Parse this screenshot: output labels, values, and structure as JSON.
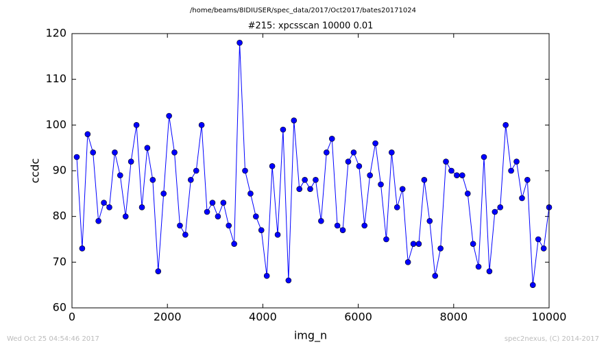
{
  "chart_data": {
    "type": "line",
    "suptitle": "/home/beams/8IDIUSER/spec_data/2017/Oct2017/bates20171024",
    "title": "#215: xpcsscan 10000 0.01",
    "xlabel": "img_n",
    "ylabel": "ccdc",
    "x": [
      100,
      214,
      328,
      441,
      555,
      669,
      783,
      897,
      1010,
      1124,
      1238,
      1352,
      1466,
      1579,
      1693,
      1807,
      1921,
      2035,
      2148,
      2262,
      2376,
      2490,
      2604,
      2717,
      2831,
      2945,
      3059,
      3173,
      3286,
      3400,
      3514,
      3628,
      3742,
      3855,
      3969,
      4083,
      4197,
      4311,
      4424,
      4538,
      4652,
      4766,
      4880,
      4993,
      5107,
      5221,
      5335,
      5449,
      5562,
      5676,
      5790,
      5904,
      6018,
      6131,
      6245,
      6359,
      6473,
      6587,
      6700,
      6814,
      6928,
      7042,
      7156,
      7269,
      7383,
      7497,
      7611,
      7725,
      7838,
      7952,
      8066,
      8180,
      8294,
      8407,
      8521,
      8635,
      8749,
      8863,
      8976,
      9090,
      9204,
      9318,
      9432,
      9545,
      9659,
      9773,
      9887,
      10000
    ],
    "series": [
      {
        "color": "#0000ff",
        "values": [
          93,
          73,
          98,
          94,
          79,
          83,
          82,
          94,
          89,
          80,
          92,
          100,
          82,
          95,
          88,
          68,
          85,
          102,
          94,
          78,
          76,
          88,
          90,
          100,
          81,
          83,
          80,
          83,
          78,
          74,
          118,
          90,
          85,
          80,
          77,
          67,
          91,
          76,
          99,
          66,
          101,
          86,
          88,
          86,
          88,
          79,
          94,
          97,
          78,
          77,
          92,
          94,
          91,
          78,
          89,
          96,
          87,
          75,
          94,
          82,
          86,
          70,
          74,
          74,
          88,
          79,
          67,
          73,
          92,
          90,
          89,
          89,
          85,
          74,
          69,
          93,
          68,
          81,
          82,
          100,
          90,
          92,
          84,
          88,
          65,
          75,
          73,
          82
        ]
      }
    ],
    "xlim": [
      0,
      10000
    ],
    "xticks": [
      0,
      2000,
      4000,
      6000,
      8000,
      10000
    ],
    "ylim": [
      60,
      120
    ],
    "yticks": [
      60,
      70,
      80,
      90,
      100,
      110,
      120
    ],
    "grid": false
  },
  "footer": {
    "left": "Wed Oct 25 04:54:46 2017",
    "right": "spec2nexus, (C) 2014-2017"
  }
}
